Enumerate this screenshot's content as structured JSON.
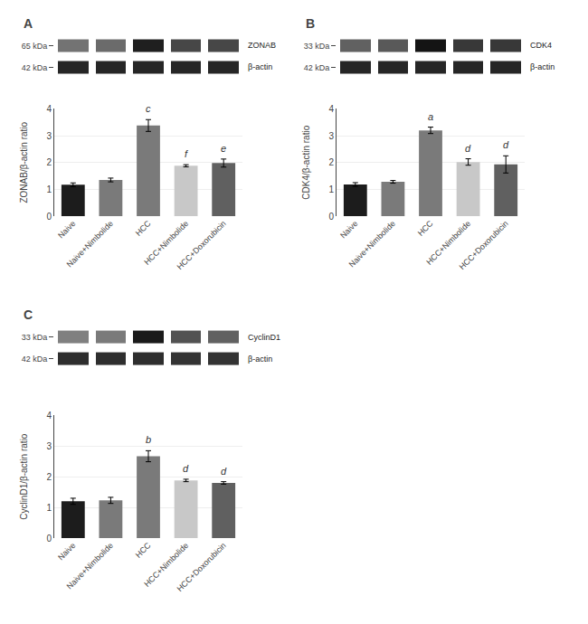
{
  "chart_data": [
    {
      "type": "bar",
      "title": "A",
      "ylabel": "ZONAB/β-actin ratio",
      "categories": [
        "Naive",
        "Naive+Nimbolide",
        "HCC",
        "HCC+Nimbolide",
        "HCC+Doxorubicin"
      ],
      "values": [
        1.17,
        1.35,
        3.38,
        1.88,
        1.98
      ],
      "errors": [
        0.07,
        0.07,
        0.22,
        0.04,
        0.15
      ],
      "colors": [
        "#1c1c1c",
        "#7a7a7a",
        "#7a7a7a",
        "#c8c8c8",
        "#606060"
      ],
      "ylim": [
        0,
        4
      ],
      "yticks": [
        0,
        1,
        2,
        3,
        4
      ],
      "grid": true,
      "annotations": [
        {
          "category": "HCC",
          "text": "c"
        },
        {
          "category": "HCC+Nimbolide",
          "text": "f"
        },
        {
          "category": "HCC+Doxorubicin",
          "text": "e"
        }
      ],
      "blot": {
        "type": "heatmap",
        "cells": [
          [
            0.45,
            0.42,
            0.12,
            0.28,
            0.28
          ],
          [
            0.15,
            0.15,
            0.15,
            0.15,
            0.15
          ]
        ],
        "zlim": [
          0,
          1
        ],
        "row_labels": [
          "65 kDa",
          "42 kDa"
        ],
        "row_names": [
          "ZONAB",
          "β-actin"
        ]
      }
    },
    {
      "type": "bar",
      "title": "B",
      "ylabel": "CDK4/β-actin ratio",
      "categories": [
        "Naive",
        "Naive+Nimbolide",
        "HCC",
        "HCC+Nimbolide",
        "HCC+Doxorubicin"
      ],
      "values": [
        1.18,
        1.28,
        3.2,
        2.02,
        1.93
      ],
      "errors": [
        0.07,
        0.05,
        0.12,
        0.12,
        0.32
      ],
      "colors": [
        "#1c1c1c",
        "#7a7a7a",
        "#7a7a7a",
        "#c8c8c8",
        "#606060"
      ],
      "ylim": [
        0,
        4
      ],
      "yticks": [
        0,
        1,
        2,
        3,
        4
      ],
      "grid": true,
      "annotations": [
        {
          "category": "HCC",
          "text": "a"
        },
        {
          "category": "HCC+Nimbolide",
          "text": "d"
        },
        {
          "category": "HCC+Doxorubicin",
          "text": "d"
        }
      ],
      "blot": {
        "type": "heatmap",
        "cells": [
          [
            0.38,
            0.35,
            0.08,
            0.22,
            0.22
          ],
          [
            0.15,
            0.15,
            0.15,
            0.15,
            0.15
          ]
        ],
        "zlim": [
          0,
          1
        ],
        "row_labels": [
          "33 kDa",
          "42 kDa"
        ],
        "row_names": [
          "CDK4",
          "β-actin"
        ]
      }
    },
    {
      "type": "bar",
      "title": "C",
      "ylabel": "CyclinD1/β-actin ratio",
      "categories": [
        "Naive",
        "Naive+Nimbolide",
        "HCC",
        "HCC+Nimbolide",
        "HCC+Doxorubicin"
      ],
      "values": [
        1.2,
        1.23,
        2.67,
        1.88,
        1.8
      ],
      "errors": [
        0.1,
        0.1,
        0.18,
        0.04,
        0.04
      ],
      "colors": [
        "#1c1c1c",
        "#7a7a7a",
        "#7a7a7a",
        "#c8c8c8",
        "#606060"
      ],
      "ylim": [
        0,
        4
      ],
      "yticks": [
        0,
        1,
        2,
        3,
        4
      ],
      "grid": true,
      "annotations": [
        {
          "category": "HCC",
          "text": "b"
        },
        {
          "category": "HCC+Nimbolide",
          "text": "d"
        },
        {
          "category": "HCC+Doxorubicin",
          "text": "d"
        }
      ],
      "blot": {
        "type": "heatmap",
        "cells": [
          [
            0.5,
            0.48,
            0.1,
            0.32,
            0.38
          ],
          [
            0.18,
            0.18,
            0.18,
            0.2,
            0.2
          ]
        ],
        "zlim": [
          0,
          1
        ],
        "row_labels": [
          "33 kDa",
          "42 kDa"
        ],
        "row_names": [
          "CyclinD1",
          "β-actin"
        ]
      }
    }
  ]
}
